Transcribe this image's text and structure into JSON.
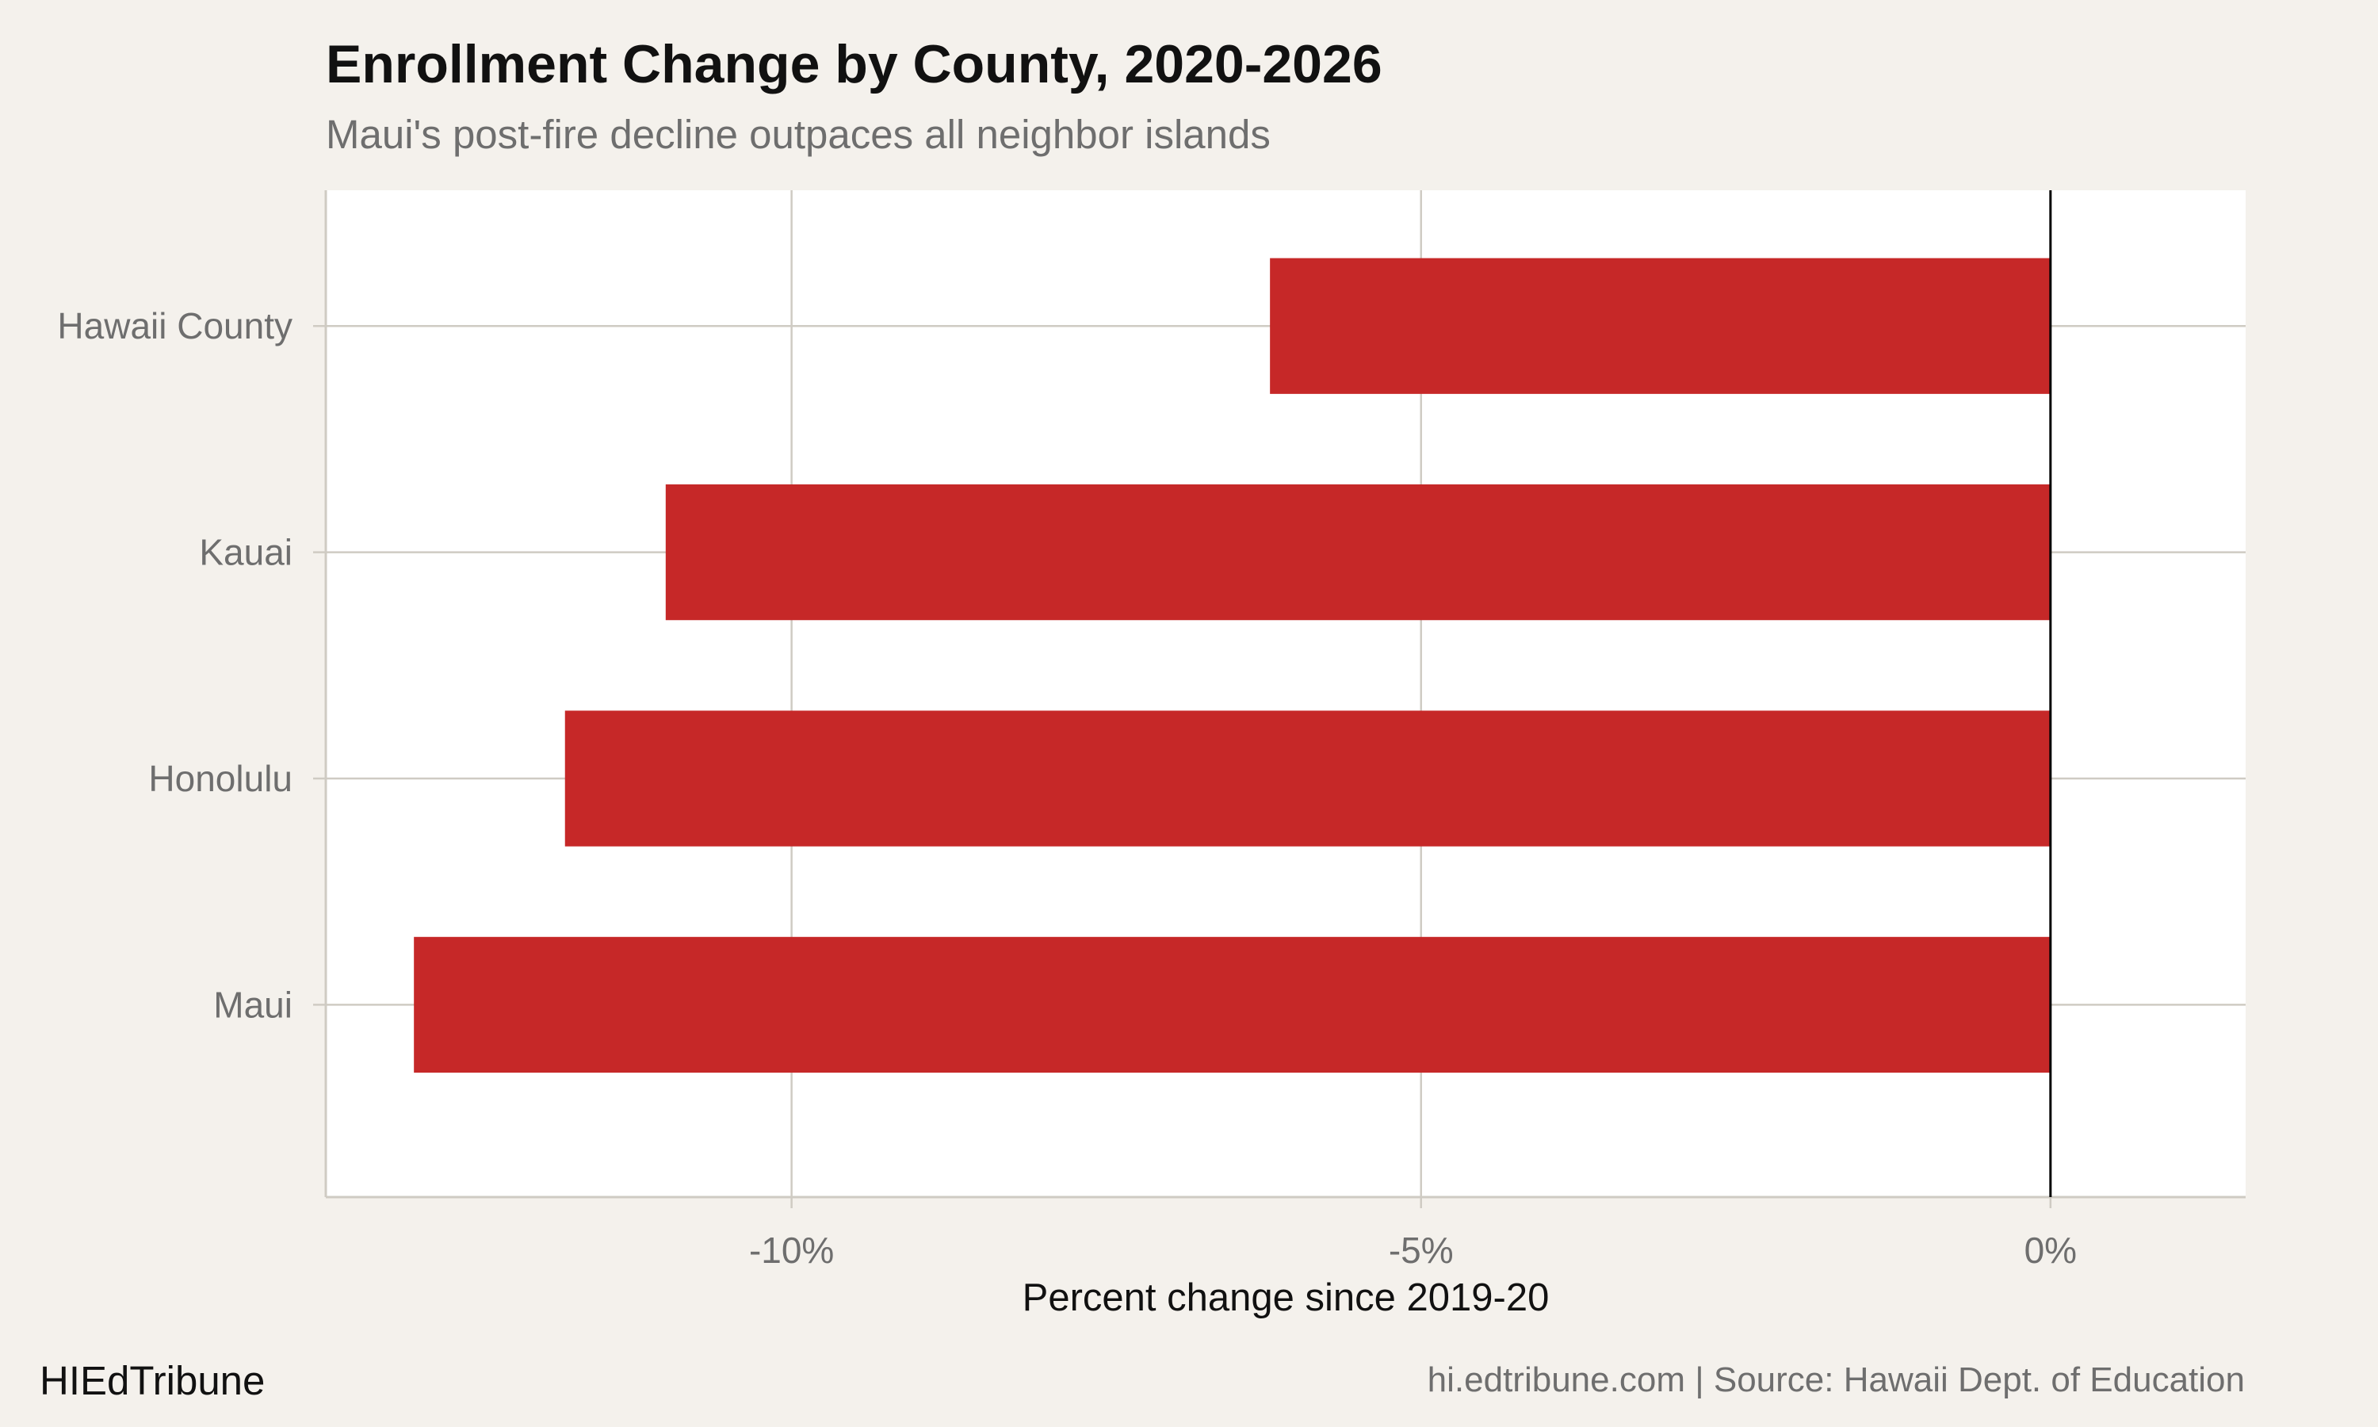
{
  "header": {
    "title": "Enrollment Change by County, 2020-2026",
    "subtitle": "Maui's post-fire decline outpaces all neighbor islands"
  },
  "footer": {
    "brand": "HIEdTribune",
    "source": "hi.edtribune.com | Source: Hawaii Dept. of Education"
  },
  "colors": {
    "bar": "#c62828",
    "panel": "#ffffff",
    "background": "#f4f1ec",
    "grid": "#cfcbc3",
    "zero_line": "#000000",
    "tick_text": "#6e6e6e"
  },
  "chart_data": {
    "type": "bar",
    "orientation": "horizontal",
    "categories": [
      "Hawaii County",
      "Kauai",
      "Honolulu",
      "Maui"
    ],
    "values": [
      -6.2,
      -11.0,
      -11.8,
      -13.0
    ],
    "xlabel": "Percent change since 2019-20",
    "ylabel": "",
    "xlim": [
      -13.7,
      1.55
    ],
    "xticks": [
      -10,
      -5,
      0
    ],
    "xtick_labels": [
      "-10%",
      "-5%",
      "0%"
    ],
    "grid": true
  }
}
